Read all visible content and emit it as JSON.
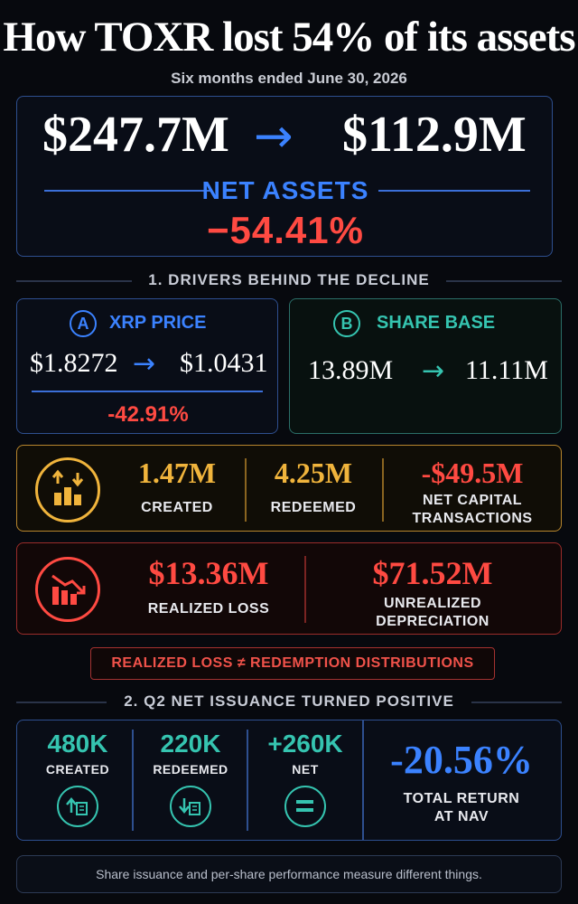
{
  "title": "How TOXR lost 54% of its assets",
  "subtitle": "Six months ended June 30, 2026",
  "net_assets": {
    "start": "$247.7M",
    "end": "$112.9M",
    "label": "NET ASSETS",
    "change": "−54.41%",
    "arrow": "→"
  },
  "section1": "1. DRIVERS BEHIND THE DECLINE",
  "xrp_price": {
    "badge": "A",
    "label": "XRP PRICE",
    "start": "$1.8272",
    "end": "$1.0431",
    "change": "-42.91%",
    "arrow": "→"
  },
  "share_base": {
    "badge": "B",
    "label": "SHARE BASE",
    "start": "13.89M",
    "end": "11.11M",
    "arrow": "→"
  },
  "capital": {
    "created_value": "1.47M",
    "created_label": "CREATED",
    "redeemed_value": "4.25M",
    "redeemed_label": "REDEEMED",
    "net_value": "-$49.5M",
    "net_label_1": "NET CAPITAL",
    "net_label_2": "TRANSACTIONS"
  },
  "losses": {
    "realized_value": "$13.36M",
    "realized_label": "REALIZED LOSS",
    "unrealized_value": "$71.52M",
    "unrealized_label_1": "UNREALIZED",
    "unrealized_label_2": "DEPRECIATION"
  },
  "note_bar": "REALIZED LOSS ≠ REDEMPTION DISTRIBUTIONS",
  "section2": "2. Q2 NET ISSUANCE TURNED POSITIVE",
  "q2": {
    "created_value": "480K",
    "created_label": "CREATED",
    "redeemed_value": "220K",
    "redeemed_label": "REDEEMED",
    "net_value": "+260K",
    "net_label": "NET",
    "return_value": "-20.56%",
    "return_label_1": "TOTAL RETURN",
    "return_label_2": "AT NAV"
  },
  "footer": "Share issuance and per-share performance measure different things.",
  "colors": {
    "blue": "#3b82ff",
    "teal": "#35c4b0",
    "gold": "#f0b43c",
    "red": "#ff4a42"
  },
  "icons": [
    "bar-chart-up-down-icon",
    "bar-chart-down-icon",
    "shares-in-icon",
    "shares-out-icon",
    "equals-icon"
  ]
}
